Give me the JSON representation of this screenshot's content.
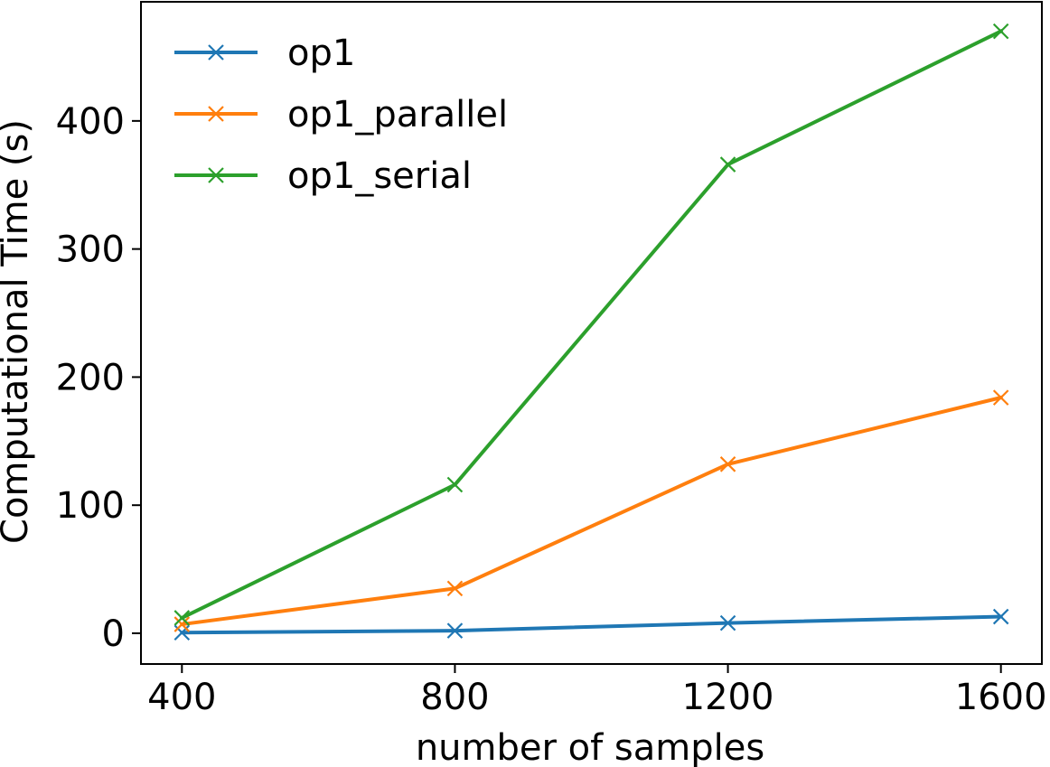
{
  "chart_data": {
    "type": "line",
    "title": "",
    "xlabel": "number of samples",
    "ylabel": "Computational Time (s)",
    "x": [
      400,
      800,
      1200,
      1600
    ],
    "xticks": [
      400,
      800,
      1200,
      1600
    ],
    "yticks": [
      0,
      100,
      200,
      300,
      400
    ],
    "xlim": [
      340,
      1660
    ],
    "ylim": [
      -24,
      493
    ],
    "grid": false,
    "legend_position": "top-left",
    "marker": "x",
    "series": [
      {
        "name": "op1",
        "color": "#1f77b4",
        "values": [
          0.5,
          2,
          8,
          13
        ]
      },
      {
        "name": "op1_parallel",
        "color": "#ff7f0e",
        "values": [
          7,
          35,
          132,
          184
        ]
      },
      {
        "name": "op1_serial",
        "color": "#2ca02c",
        "values": [
          12,
          116,
          366,
          470
        ]
      }
    ]
  }
}
